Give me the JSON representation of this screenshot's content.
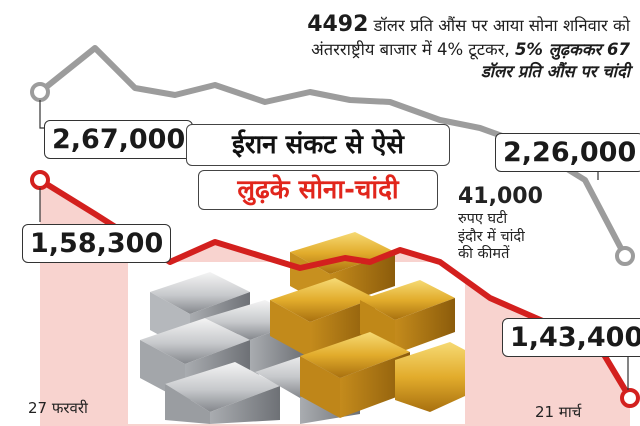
{
  "headline": {
    "line1_amount": "4492",
    "line1_rest": "डॉलर प्रति औंस पर आया सोना शनिवार को",
    "line2_plain": "अंतरराष्ट्रीय बाजार में 4% टूटकर,",
    "line2_emph": "5% लुढ़ककर 67",
    "line3_emph": "डॉलर प्रति औंस पर चांदी"
  },
  "title": {
    "line1": "ईरान संकट से ऐसे",
    "line2": "लुढ़के सोना-चांदी"
  },
  "drop_note": {
    "amount": "41,000",
    "line1": "रुपए घटी",
    "line2": "इंदौर में चांदी",
    "line3": "की कीमतें"
  },
  "colors": {
    "silver_line": "#9c9c9c",
    "gold_line": "#d3201e",
    "gold_fill": "#f8d3cf",
    "title_accent": "#e1261c"
  },
  "chart_data": {
    "type": "line",
    "x": [
      "27 फरवरी",
      "21 मार्च"
    ],
    "series": [
      {
        "name": "चांदी",
        "values": [
          267000,
          226000
        ],
        "labels": [
          "2,67,000",
          "2,26,000"
        ]
      },
      {
        "name": "सोना",
        "values": [
          158300,
          143400
        ],
        "labels": [
          "1,58,300",
          "1,43,400"
        ]
      }
    ],
    "tick_labels": [
      "27 फरवरी",
      "21 मार्च"
    ],
    "grid": false,
    "legend": "none"
  }
}
